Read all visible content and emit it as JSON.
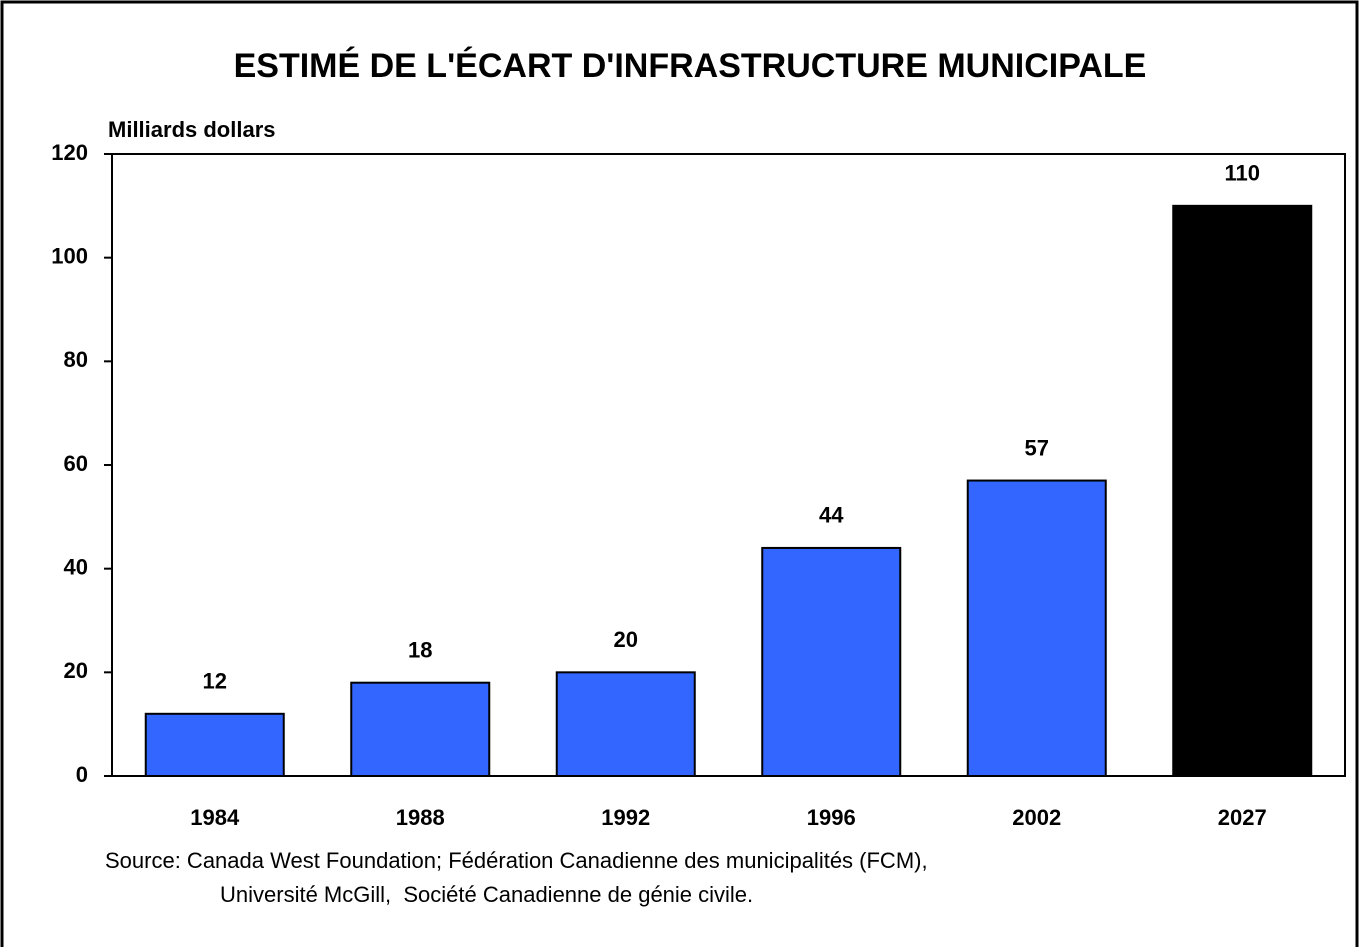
{
  "chart_data": {
    "type": "bar",
    "title": "ESTIMÉ DE L'ÉCART D'INFRASTRUCTURE MUNICIPALE",
    "y_label": "Milliards dollars",
    "categories": [
      "1984",
      "1988",
      "1992",
      "1996",
      "2002",
      "2027"
    ],
    "values": [
      12,
      18,
      20,
      44,
      57,
      110
    ],
    "colors": [
      "#3366ff",
      "#3366ff",
      "#3366ff",
      "#3366ff",
      "#3366ff",
      "#000000"
    ],
    "ylim": [
      0,
      120
    ],
    "yticks": [
      0,
      20,
      40,
      60,
      80,
      100,
      120
    ],
    "grid": false,
    "source": [
      "Source: Canada West Foundation; Fédération Canadienne des municipalités (FCM),",
      "Université McGill,  Société Canadienne de génie civile."
    ]
  }
}
